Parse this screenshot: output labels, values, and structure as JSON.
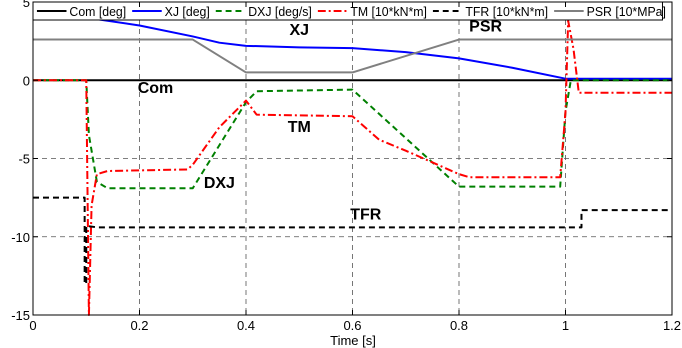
{
  "chart_data": {
    "type": "line",
    "xlabel": "Time [s]",
    "ylabel": "",
    "xlim": [
      0,
      1.2
    ],
    "ylim": [
      -15,
      5
    ],
    "xticks": [
      "0",
      "0.2",
      "0.4",
      "0.6",
      "0.8",
      "1",
      "1.2"
    ],
    "yticks": [
      "5",
      "0",
      "-5",
      "-10",
      "-15"
    ],
    "grid": "dashed",
    "legend_position": "top",
    "series": [
      {
        "name": "Com [deg]",
        "color": "#000000",
        "dash": "solid",
        "points": [
          [
            0,
            0
          ],
          [
            1.2,
            0
          ]
        ]
      },
      {
        "name": "XJ [deg]",
        "color": "#0000ff",
        "dash": "solid",
        "points": [
          [
            0,
            4.0
          ],
          [
            0.1,
            4.0
          ],
          [
            0.2,
            3.5
          ],
          [
            0.3,
            2.8
          ],
          [
            0.35,
            2.4
          ],
          [
            0.4,
            2.2
          ],
          [
            0.5,
            2.1
          ],
          [
            0.6,
            2.05
          ],
          [
            0.7,
            1.8
          ],
          [
            0.8,
            1.4
          ],
          [
            0.9,
            0.8
          ],
          [
            1.0,
            0.1
          ],
          [
            1.2,
            0.1
          ]
        ]
      },
      {
        "name": "DXJ [deg/s]",
        "color": "#008000",
        "dash": "dashed",
        "points": [
          [
            0,
            0
          ],
          [
            0.1,
            0
          ],
          [
            0.105,
            -3.5
          ],
          [
            0.12,
            -6.5
          ],
          [
            0.14,
            -6.9
          ],
          [
            0.3,
            -6.9
          ],
          [
            0.4,
            -1.4
          ],
          [
            0.42,
            -0.7
          ],
          [
            0.6,
            -0.6
          ],
          [
            0.8,
            -6.8
          ],
          [
            0.99,
            -6.8
          ],
          [
            1.0,
            -2.0
          ],
          [
            1.01,
            0
          ],
          [
            1.2,
            0
          ]
        ]
      },
      {
        "name": "TM [10*kN*m]",
        "color": "#ff0000",
        "dash": "dashdot",
        "points": [
          [
            0,
            0
          ],
          [
            0.1,
            0
          ],
          [
            0.105,
            -15.0
          ],
          [
            0.11,
            -8.0
          ],
          [
            0.12,
            -6.0
          ],
          [
            0.14,
            -5.8
          ],
          [
            0.29,
            -5.7
          ],
          [
            0.3,
            -5.4
          ],
          [
            0.35,
            -3.0
          ],
          [
            0.4,
            -1.3
          ],
          [
            0.42,
            -2.2
          ],
          [
            0.6,
            -2.3
          ],
          [
            0.65,
            -3.8
          ],
          [
            0.7,
            -4.5
          ],
          [
            0.8,
            -6.0
          ],
          [
            0.82,
            -6.2
          ],
          [
            0.99,
            -6.2
          ],
          [
            1.0,
            -2.0
          ],
          [
            1.005,
            3.8
          ],
          [
            1.015,
            2.0
          ],
          [
            1.025,
            -0.8
          ],
          [
            1.2,
            -0.8
          ]
        ]
      },
      {
        "name": "TFR [10*kN*m]",
        "color": "#000000",
        "dash": "dashed",
        "points": [
          [
            0,
            -7.5
          ],
          [
            0.097,
            -7.5
          ],
          [
            0.097,
            -13.0
          ],
          [
            0.1,
            -13.0
          ],
          [
            0.1,
            -9.3
          ],
          [
            0.12,
            -9.4
          ],
          [
            0.3,
            -9.4
          ],
          [
            1.03,
            -9.4
          ],
          [
            1.03,
            -8.3
          ],
          [
            1.2,
            -8.3
          ]
        ]
      },
      {
        "name": "PSR [10*MPa]",
        "color": "#808080",
        "dash": "solid",
        "points": [
          [
            0,
            2.6
          ],
          [
            0.3,
            2.6
          ],
          [
            0.4,
            0.5
          ],
          [
            0.6,
            0.5
          ],
          [
            0.8,
            2.6
          ],
          [
            1.2,
            2.6
          ]
        ]
      }
    ],
    "annotations": [
      {
        "text": "XJ",
        "x": 0.5,
        "y": 2.9
      },
      {
        "text": "PSR",
        "x": 0.85,
        "y": 3.1
      },
      {
        "text": "Com",
        "x": 0.23,
        "y": -0.8
      },
      {
        "text": "TM",
        "x": 0.5,
        "y": -3.3
      },
      {
        "text": "DXJ",
        "x": 0.35,
        "y": -6.9
      },
      {
        "text": "TFR",
        "x": 0.625,
        "y": -8.9
      }
    ]
  }
}
